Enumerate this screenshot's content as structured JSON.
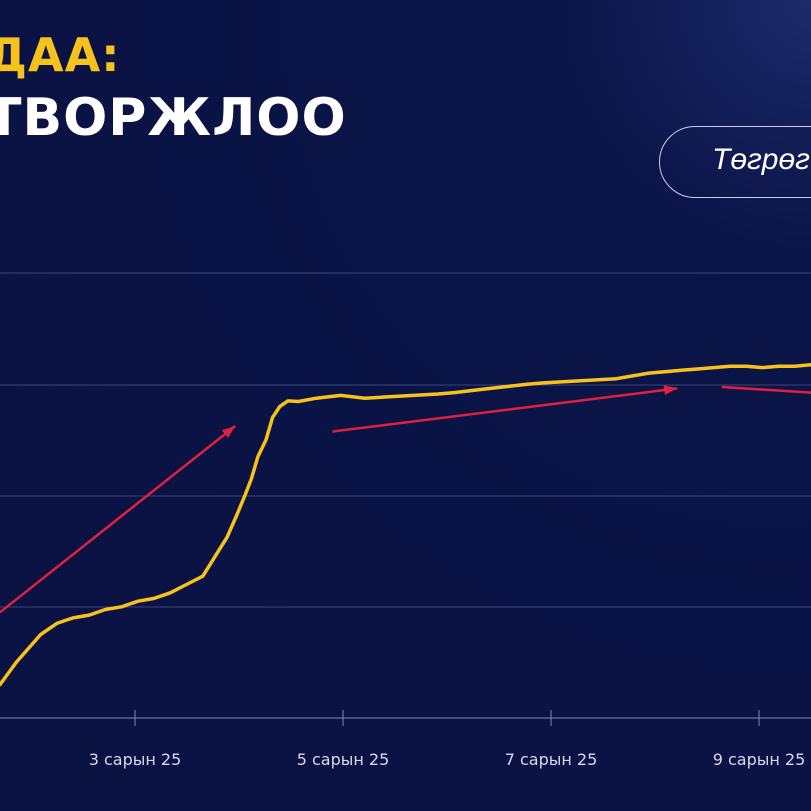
{
  "header": {
    "title_line1": "ДАА:",
    "title_line2": "ТВОРЖЛОО"
  },
  "currency_toggle": {
    "label": "Төгрөг"
  },
  "colors": {
    "background": "#0a1242",
    "line": "#f7c21c",
    "trend_arrows": "#e0213c",
    "grid": "#3c4478"
  },
  "chart_data": {
    "type": "line",
    "title": "",
    "xlabel": "",
    "ylabel": "",
    "grid": true,
    "x_ticks": [
      "3 сарын 25",
      "5 сарын 25",
      "7 сарын 25",
      "9 сарын 25"
    ],
    "y_gridlines": 5,
    "series": [
      {
        "values": [
          [
            0.0,
            0.12
          ],
          [
            0.02,
            0.2
          ],
          [
            0.035,
            0.25
          ],
          [
            0.05,
            0.3
          ],
          [
            0.07,
            0.34
          ],
          [
            0.09,
            0.36
          ],
          [
            0.11,
            0.37
          ],
          [
            0.13,
            0.39
          ],
          [
            0.15,
            0.4
          ],
          [
            0.17,
            0.42
          ],
          [
            0.19,
            0.43
          ],
          [
            0.21,
            0.45
          ],
          [
            0.23,
            0.48
          ],
          [
            0.25,
            0.51
          ],
          [
            0.265,
            0.58
          ],
          [
            0.28,
            0.65
          ],
          [
            0.292,
            0.73
          ],
          [
            0.302,
            0.8
          ],
          [
            0.31,
            0.86
          ],
          [
            0.318,
            0.94
          ],
          [
            0.328,
            1.0
          ],
          [
            0.336,
            1.08
          ],
          [
            0.345,
            1.12
          ],
          [
            0.355,
            1.14
          ],
          [
            0.368,
            1.138
          ],
          [
            0.39,
            1.15
          ],
          [
            0.42,
            1.16
          ],
          [
            0.45,
            1.15
          ],
          [
            0.48,
            1.155
          ],
          [
            0.51,
            1.16
          ],
          [
            0.54,
            1.165
          ],
          [
            0.56,
            1.17
          ],
          [
            0.59,
            1.18
          ],
          [
            0.62,
            1.19
          ],
          [
            0.65,
            1.2
          ],
          [
            0.67,
            1.205
          ],
          [
            0.7,
            1.21
          ],
          [
            0.73,
            1.215
          ],
          [
            0.76,
            1.22
          ],
          [
            0.78,
            1.23
          ],
          [
            0.8,
            1.24
          ],
          [
            0.82,
            1.245
          ],
          [
            0.84,
            1.25
          ],
          [
            0.86,
            1.255
          ],
          [
            0.88,
            1.26
          ],
          [
            0.9,
            1.265
          ],
          [
            0.92,
            1.265
          ],
          [
            0.94,
            1.26
          ],
          [
            0.96,
            1.265
          ],
          [
            0.98,
            1.265
          ],
          [
            1.0,
            1.27
          ]
        ]
      }
    ],
    "trend_arrows": [
      {
        "from": [
          0.0,
          0.38
        ],
        "to": [
          0.29,
          1.05
        ]
      },
      {
        "from": [
          0.41,
          1.03
        ],
        "to": [
          0.835,
          1.185
        ]
      },
      {
        "from": [
          0.89,
          1.19
        ],
        "to": [
          1.0,
          1.17
        ]
      }
    ]
  }
}
